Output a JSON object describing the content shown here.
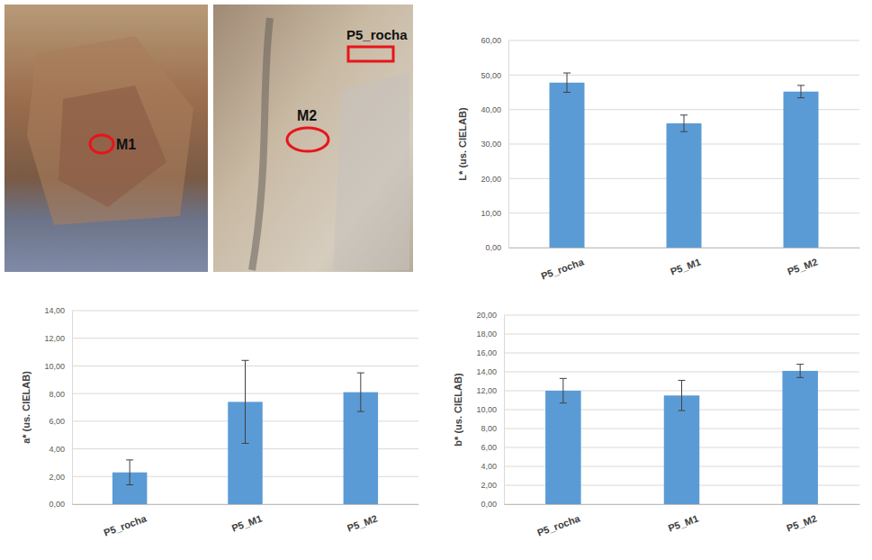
{
  "photos": [
    {
      "markers": [
        "M1"
      ]
    },
    {
      "markers": [
        "M2",
        "P5_rocha"
      ]
    }
  ],
  "chart_data": [
    {
      "type": "bar",
      "ylabel": "L* (us. CIELAB)",
      "categories": [
        "P5_rocha",
        "P5_M1",
        "P5_M2"
      ],
      "values": [
        47.8,
        36.0,
        45.2
      ],
      "errors": [
        2.8,
        2.4,
        1.8
      ],
      "color": "#5b9bd5",
      "ylim": [
        0,
        60
      ],
      "yticks": [
        {
          "value": 0,
          "label": "0,00"
        },
        {
          "value": 10,
          "label": "10,00"
        },
        {
          "value": 20,
          "label": "20,00"
        },
        {
          "value": 30,
          "label": "30,00"
        },
        {
          "value": 40,
          "label": "40,00"
        },
        {
          "value": 50,
          "label": "50,00"
        },
        {
          "value": 60,
          "label": "60,00"
        }
      ],
      "grid": true
    },
    {
      "type": "bar",
      "ylabel": "a* (us. CIELAB)",
      "categories": [
        "P5_rocha",
        "P5_M1",
        "P5_M2"
      ],
      "values": [
        2.3,
        7.4,
        8.1
      ],
      "errors": [
        0.9,
        3.0,
        1.4
      ],
      "color": "#5b9bd5",
      "ylim": [
        0,
        14
      ],
      "yticks": [
        {
          "value": 0,
          "label": "0,00"
        },
        {
          "value": 2,
          "label": "2,00"
        },
        {
          "value": 4,
          "label": "4,00"
        },
        {
          "value": 6,
          "label": "6,00"
        },
        {
          "value": 8,
          "label": "8,00"
        },
        {
          "value": 10,
          "label": "10,00"
        },
        {
          "value": 12,
          "label": "12,00"
        },
        {
          "value": 14,
          "label": "14,00"
        }
      ],
      "grid": true
    },
    {
      "type": "bar",
      "ylabel": "b* (us. CIELAB)",
      "categories": [
        "P5_rocha",
        "P5_M1",
        "P5_M2"
      ],
      "values": [
        12.0,
        11.5,
        14.1
      ],
      "errors": [
        1.3,
        1.6,
        0.7
      ],
      "color": "#5b9bd5",
      "ylim": [
        0,
        20
      ],
      "yticks": [
        {
          "value": 0,
          "label": "0,00"
        },
        {
          "value": 2,
          "label": "2,00"
        },
        {
          "value": 4,
          "label": "4,00"
        },
        {
          "value": 6,
          "label": "6,00"
        },
        {
          "value": 8,
          "label": "8,00"
        },
        {
          "value": 10,
          "label": "10,00"
        },
        {
          "value": 12,
          "label": "12,00"
        },
        {
          "value": 14,
          "label": "14,00"
        },
        {
          "value": 16,
          "label": "16,00"
        },
        {
          "value": 18,
          "label": "18,00"
        },
        {
          "value": 20,
          "label": "20,00"
        }
      ],
      "grid": true
    }
  ]
}
